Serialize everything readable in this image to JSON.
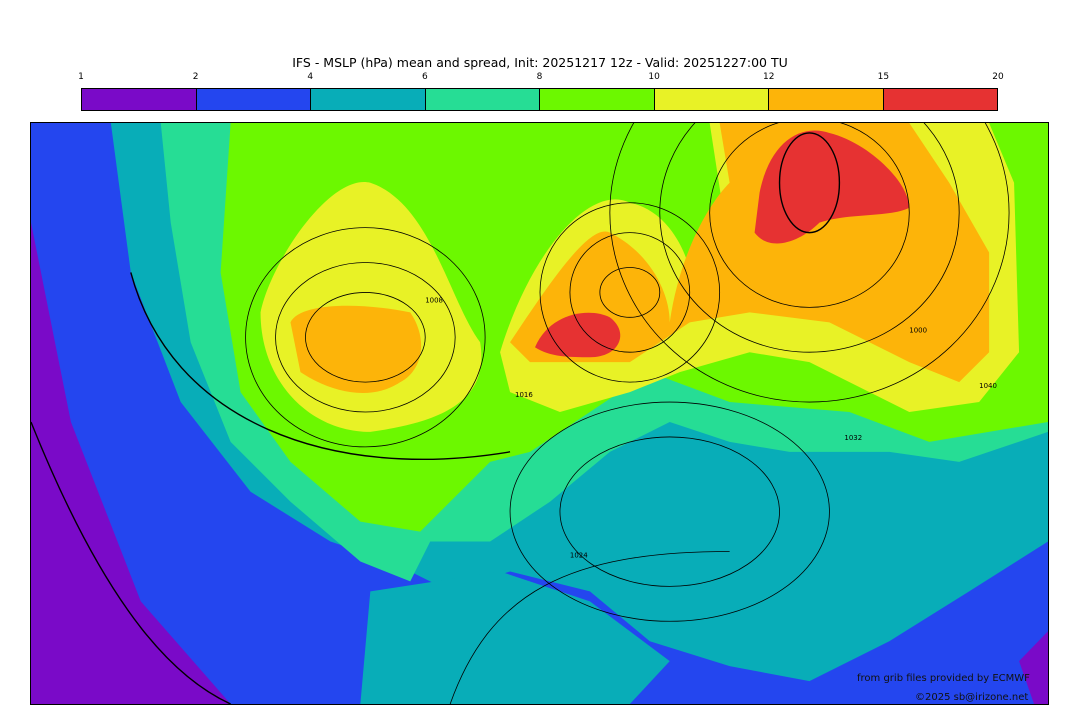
{
  "title": "IFS - MSLP (hPa) mean and spread, Init: 20251217 12z - Valid: 20251227:00 TU",
  "colorbar": {
    "ticks": [
      "1",
      "2",
      "4",
      "6",
      "8",
      "10",
      "12",
      "15",
      "20"
    ],
    "colors": [
      "#7a0ac8",
      "#2446ef",
      "#08adb8",
      "#26dd95",
      "#6cf800",
      "#e8f226",
      "#fdb409",
      "#e63232"
    ]
  },
  "isobar_labels": [
    "1024",
    "1016",
    "1008",
    "1000",
    "1032",
    "1040"
  ],
  "credits": {
    "source": "from grib files provided by ECMWF",
    "copyright": "©2025 sb@irizone.net"
  }
}
